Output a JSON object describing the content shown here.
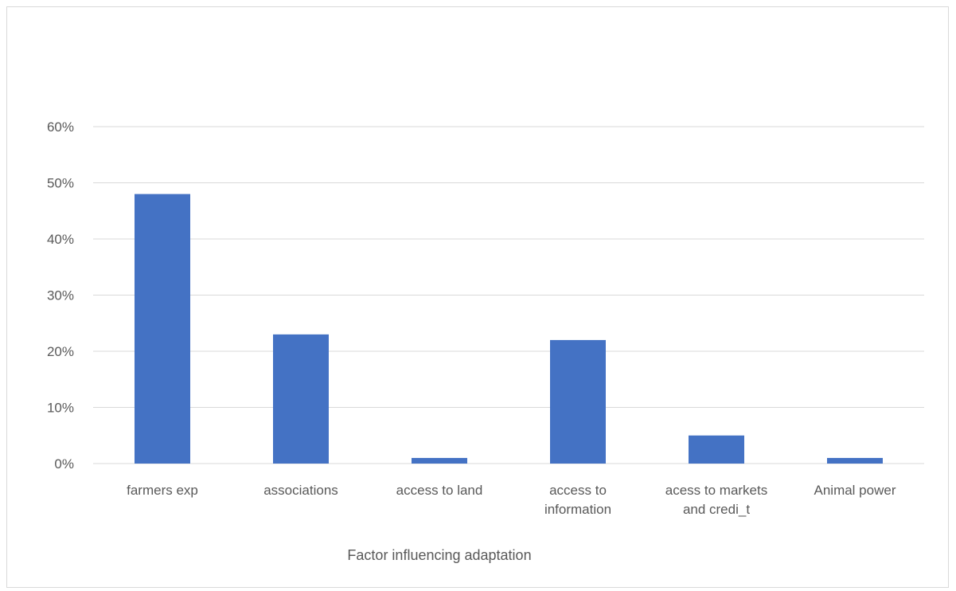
{
  "chart_data": {
    "type": "bar",
    "title": "",
    "xlabel": "Factor influencing adaptation",
    "ylabel": "",
    "categories": [
      [
        "farmers exp"
      ],
      [
        "associations"
      ],
      [
        "access to land"
      ],
      [
        "access to",
        "information"
      ],
      [
        "acess to markets",
        "and credi_t"
      ],
      [
        "Animal power"
      ]
    ],
    "values": [
      0.48,
      0.23,
      0.01,
      0.22,
      0.05,
      0.01
    ],
    "ylim": [
      0,
      0.6
    ],
    "yticks": [
      0,
      0.1,
      0.2,
      0.3,
      0.4,
      0.5,
      0.6
    ],
    "ytick_labels": [
      "0%",
      "10%",
      "20%",
      "30%",
      "40%",
      "50%",
      "60%"
    ],
    "grid": true,
    "legend": "none",
    "colors": {
      "bar": "#4472c4",
      "grid": "#d9d9d9",
      "text": "#595959"
    }
  }
}
